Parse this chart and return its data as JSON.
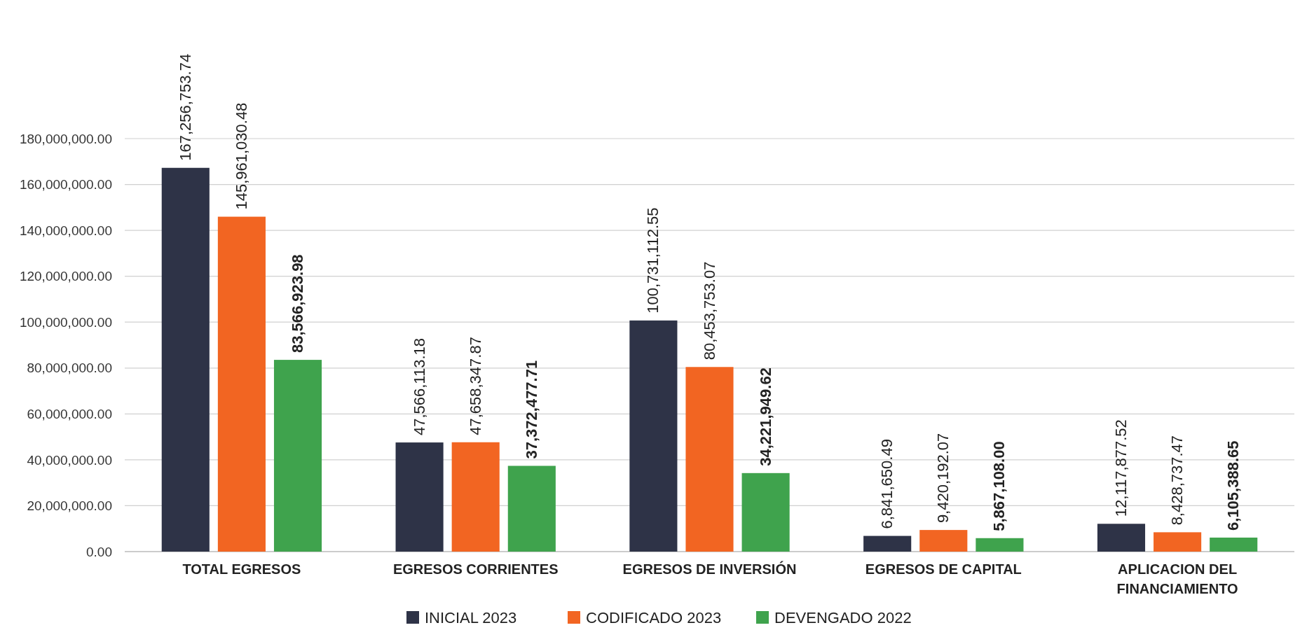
{
  "chart_data": {
    "type": "bar",
    "categories": [
      "TOTAL EGRESOS",
      "EGRESOS CORRIENTES",
      "EGRESOS DE INVERSIÓN",
      "EGRESOS DE CAPITAL",
      "APLICACION DEL FINANCIAMIENTO"
    ],
    "series": [
      {
        "name": "INICIAL 2023",
        "color": "#2e3347",
        "values": [
          167256753.74,
          47566113.18,
          100731112.55,
          6841650.49,
          12117877.52
        ],
        "value_labels": [
          "167,256,753.74",
          "47,566,113.18",
          "100,731,112.55",
          "6,841,650.49",
          "12,117,877.52"
        ]
      },
      {
        "name": "CODIFICADO 2023",
        "color": "#f26522",
        "values": [
          145961030.48,
          47658347.87,
          80453753.07,
          9420192.07,
          8428737.47
        ],
        "value_labels": [
          "145,961,030.48",
          "47,658,347.87",
          "80,453,753.07",
          "9,420,192.07",
          "8,428,737.47"
        ]
      },
      {
        "name": "DEVENGADO 2022",
        "color": "#3fa34d",
        "values": [
          83566923.98,
          37372477.71,
          34221949.62,
          5867108.0,
          6105388.65
        ],
        "value_labels": [
          "83,566,923.98",
          "37,372,477.71",
          "34,221,949.62",
          "5,867,108.00",
          "6,105,388.65"
        ]
      }
    ],
    "ylim": [
      0,
      180000000
    ],
    "yticks": [
      {
        "value": 0,
        "label": "0.00"
      },
      {
        "value": 20000000,
        "label": "20,000,000.00"
      },
      {
        "value": 40000000,
        "label": "40,000,000.00"
      },
      {
        "value": 60000000,
        "label": "60,000,000.00"
      },
      {
        "value": 80000000,
        "label": "80,000,000.00"
      },
      {
        "value": 100000000,
        "label": "100,000,000.00"
      },
      {
        "value": 120000000,
        "label": "120,000,000.00"
      },
      {
        "value": 140000000,
        "label": "140,000,000.00"
      },
      {
        "value": 160000000,
        "label": "160,000,000.00"
      },
      {
        "value": 180000000,
        "label": "180,000,000.00"
      }
    ],
    "grid": "y",
    "legend": "bottom"
  }
}
